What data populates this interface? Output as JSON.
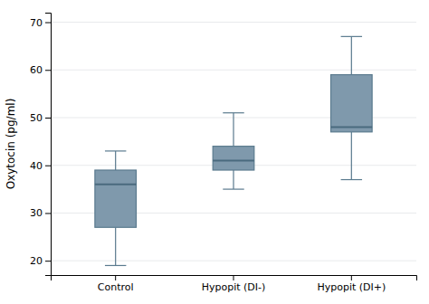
{
  "chart_data": {
    "type": "box",
    "categories": [
      "Control",
      "Hypopit (DI-)",
      "Hypopit (DI+)"
    ],
    "boxes": [
      {
        "whislo": 19,
        "q1": 27,
        "med": 36,
        "q3": 39,
        "whishi": 43
      },
      {
        "whislo": 35,
        "q1": 39,
        "med": 41,
        "q3": 44,
        "whishi": 51
      },
      {
        "whislo": 37,
        "q1": 47,
        "med": 48,
        "q3": 59,
        "whishi": 67
      }
    ],
    "ylim": [
      17,
      72
    ],
    "yticks": [
      20,
      30,
      40,
      50,
      60,
      70
    ],
    "ylabel": "Oxytocin (pg/ml)",
    "color": "#7f99ac",
    "grid": true
  }
}
